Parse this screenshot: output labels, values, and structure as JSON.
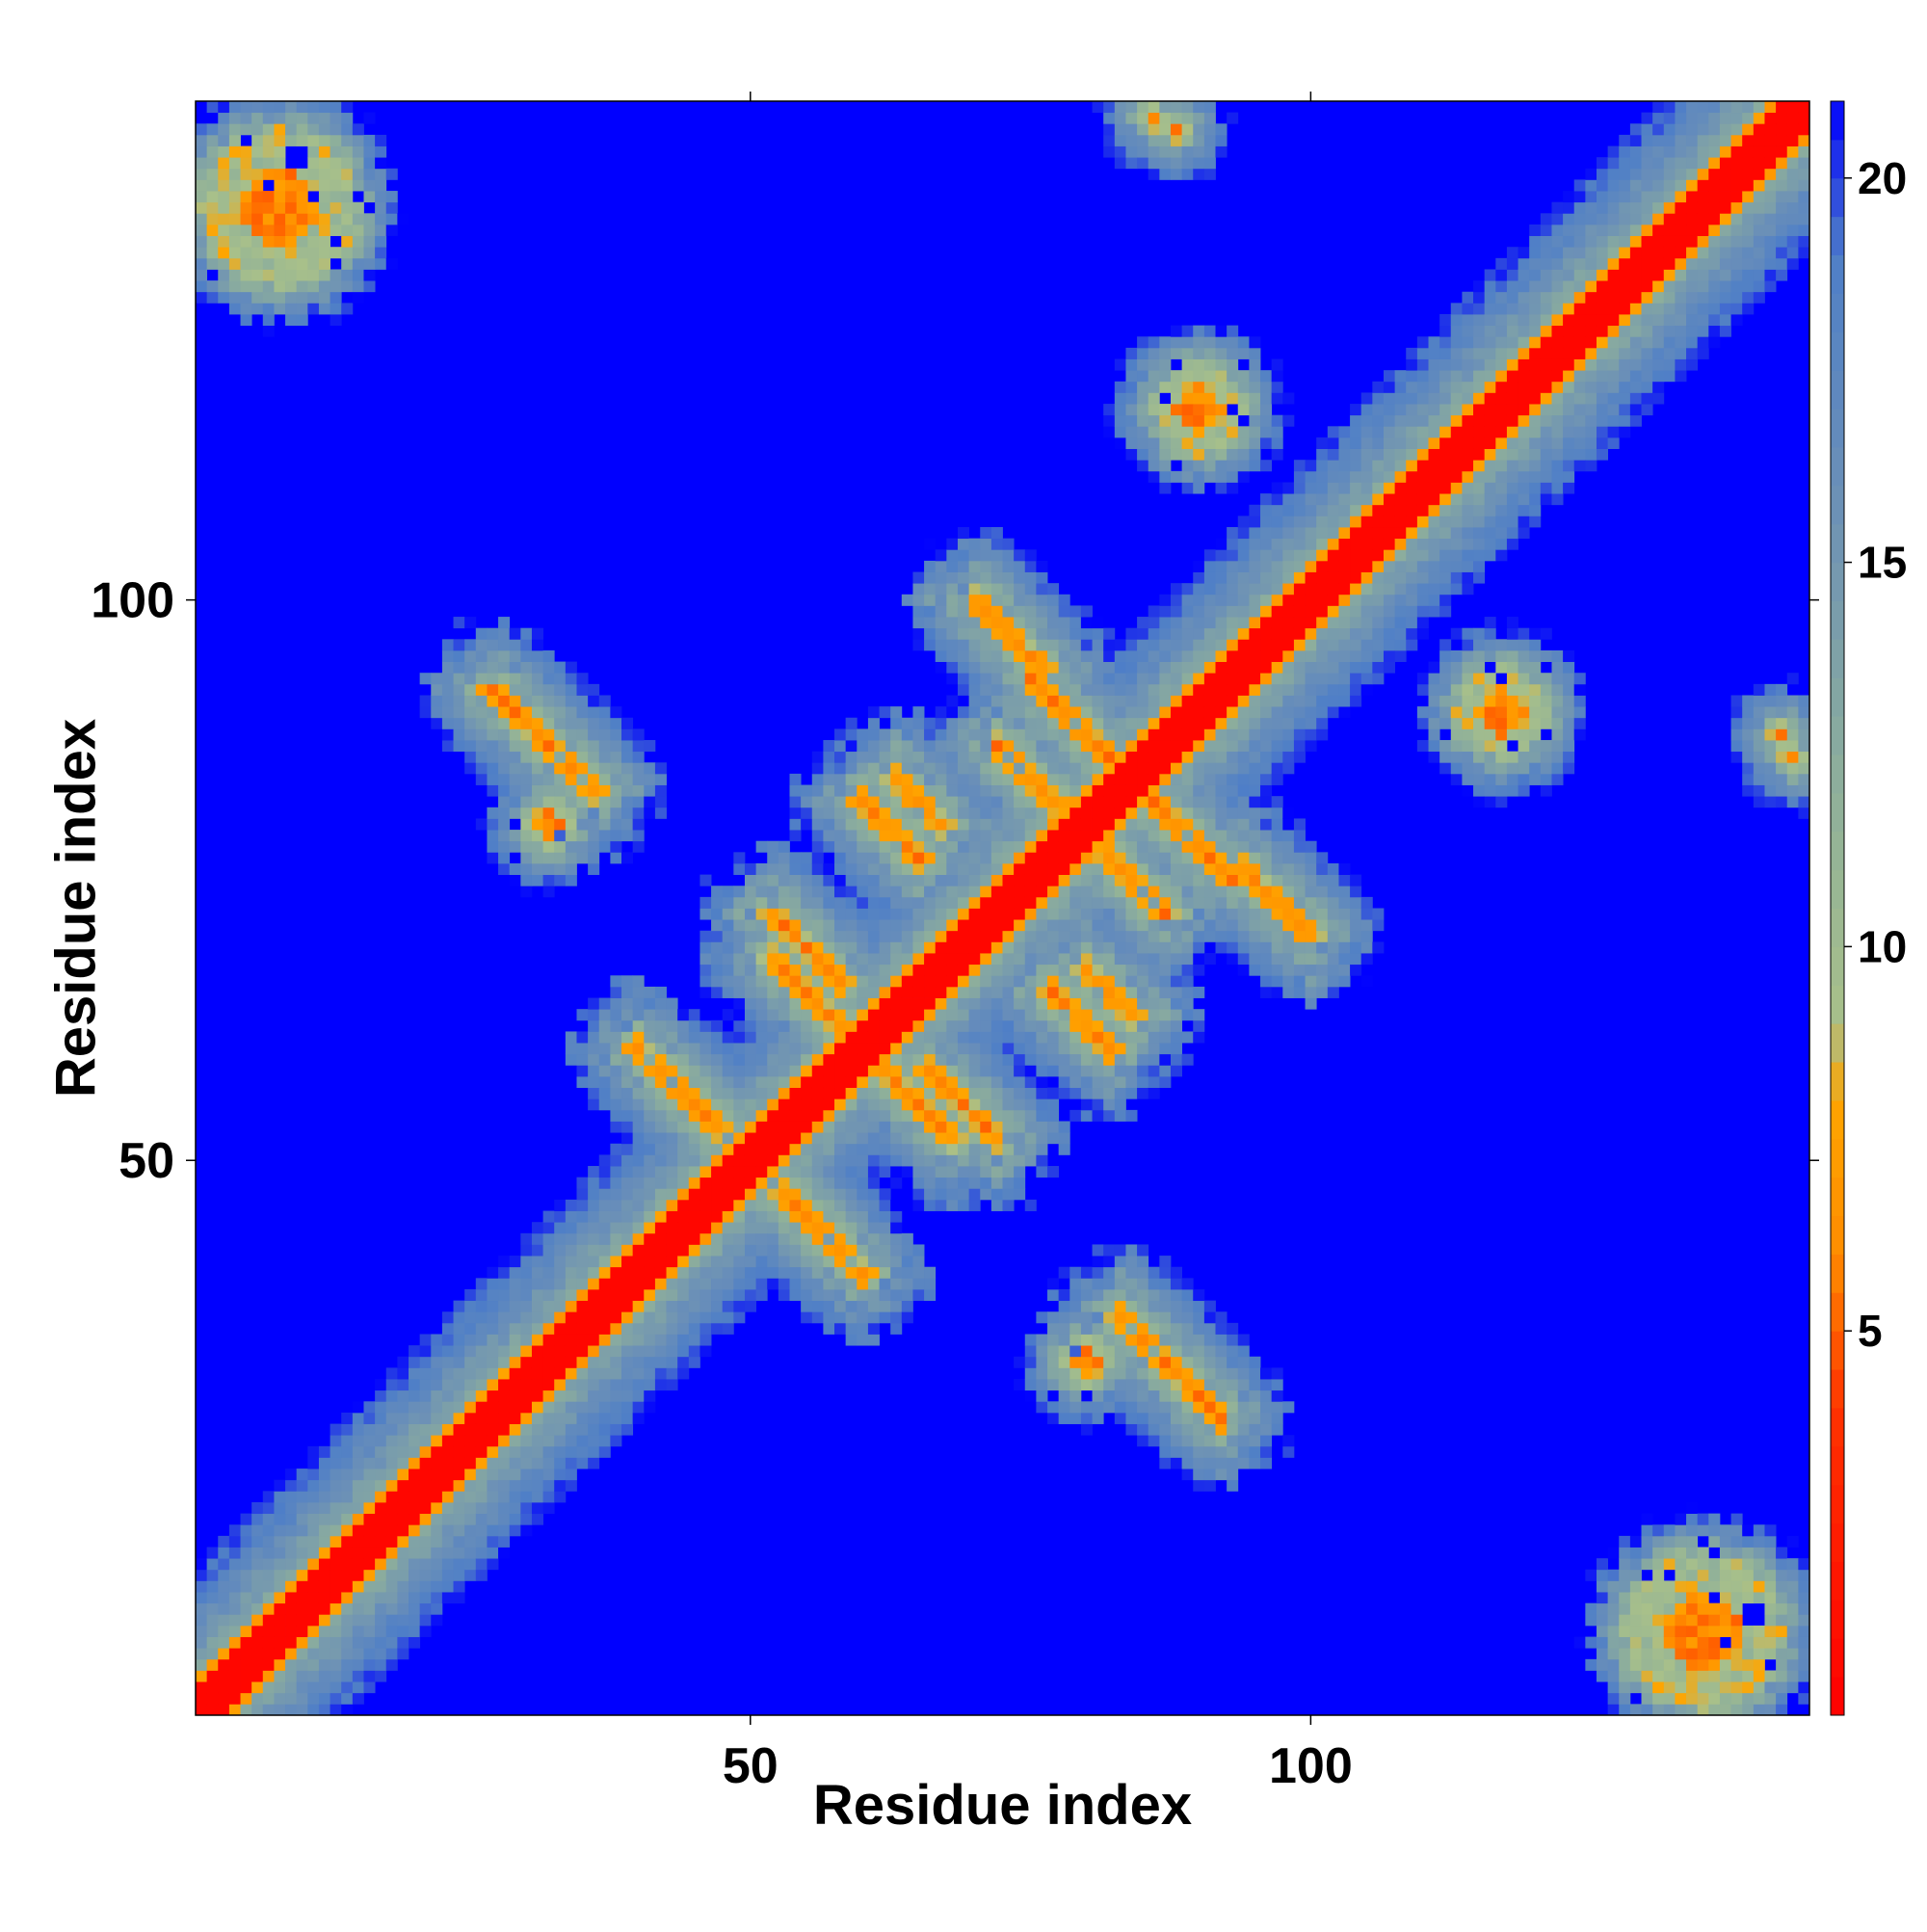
{
  "chart_data": {
    "type": "heatmap",
    "title": "",
    "xlabel": "Residue index",
    "ylabel": "Residue index",
    "n_residues": 144,
    "xlim": [
      1,
      144
    ],
    "ylim": [
      1,
      144
    ],
    "x_ticks": [
      50,
      100
    ],
    "y_ticks": [
      50,
      100
    ],
    "colorbar": {
      "ticks": [
        5,
        10,
        15,
        20
      ],
      "range": [
        0,
        21
      ],
      "position": "right"
    },
    "colormap": [
      {
        "value": 0,
        "color": "#ff0000"
      },
      {
        "value": 4,
        "color": "#ff3300"
      },
      {
        "value": 6,
        "color": "#ff8c00"
      },
      {
        "value": 8,
        "color": "#ffa500"
      },
      {
        "value": 9,
        "color": "#a8c08a"
      },
      {
        "value": 12,
        "color": "#8fb09a"
      },
      {
        "value": 16,
        "color": "#6a8fb8"
      },
      {
        "value": 19,
        "color": "#4f7fc7"
      },
      {
        "value": 21,
        "color": "#0000ff"
      }
    ],
    "background_value": 21,
    "diagonal_band_width": 2,
    "contact_features": [
      {
        "type": "antiparallel",
        "i_start": 27,
        "i_end": 36,
        "j_start": 92,
        "j_end": 83
      },
      {
        "type": "antiparallel",
        "i_start": 58,
        "i_end": 68,
        "j_start": 62,
        "j_end": 52
      },
      {
        "type": "antiparallel",
        "i_start": 72,
        "i_end": 79,
        "j_start": 87,
        "j_end": 80
      },
      {
        "type": "antiparallel",
        "i_start": 60,
        "i_end": 65,
        "j_start": 82,
        "j_end": 76
      },
      {
        "type": "antiparallel",
        "i_start": 80,
        "i_end": 84,
        "j_start": 67,
        "j_end": 63
      },
      {
        "type": "antiparallel",
        "i_start": 52,
        "i_end": 58,
        "j_start": 72,
        "j_end": 66
      },
      {
        "type": "antiparallel",
        "i_start": 44,
        "i_end": 48,
        "j_start": 56,
        "j_end": 52
      },
      {
        "type": "antiparallel",
        "i_start": 54,
        "i_end": 60,
        "j_start": 46,
        "j_end": 40
      },
      {
        "type": "antiparallel",
        "i_start": 86,
        "i_end": 93,
        "j_start": 82,
        "j_end": 75
      },
      {
        "type": "antiparallel",
        "i_start": 94,
        "i_end": 100,
        "j_start": 76,
        "j_end": 70
      },
      {
        "type": "patch",
        "i": 8,
        "j": 135,
        "r": 7
      },
      {
        "type": "patch",
        "i": 135,
        "j": 8,
        "r": 7
      },
      {
        "type": "patch",
        "i": 86,
        "j": 143,
        "r": 1
      },
      {
        "type": "patch",
        "i": 143,
        "j": 86,
        "r": 1
      },
      {
        "type": "patch",
        "i": 142,
        "j": 88,
        "r": 1
      },
      {
        "type": "patch",
        "i": 88,
        "j": 142,
        "r": 1
      },
      {
        "type": "patch",
        "i": 117,
        "j": 90,
        "r": 4
      },
      {
        "type": "patch",
        "i": 90,
        "j": 117,
        "r": 4
      },
      {
        "type": "patch",
        "i": 32,
        "j": 80,
        "r": 2
      },
      {
        "type": "patch",
        "i": 80,
        "j": 32,
        "r": 2
      }
    ]
  }
}
